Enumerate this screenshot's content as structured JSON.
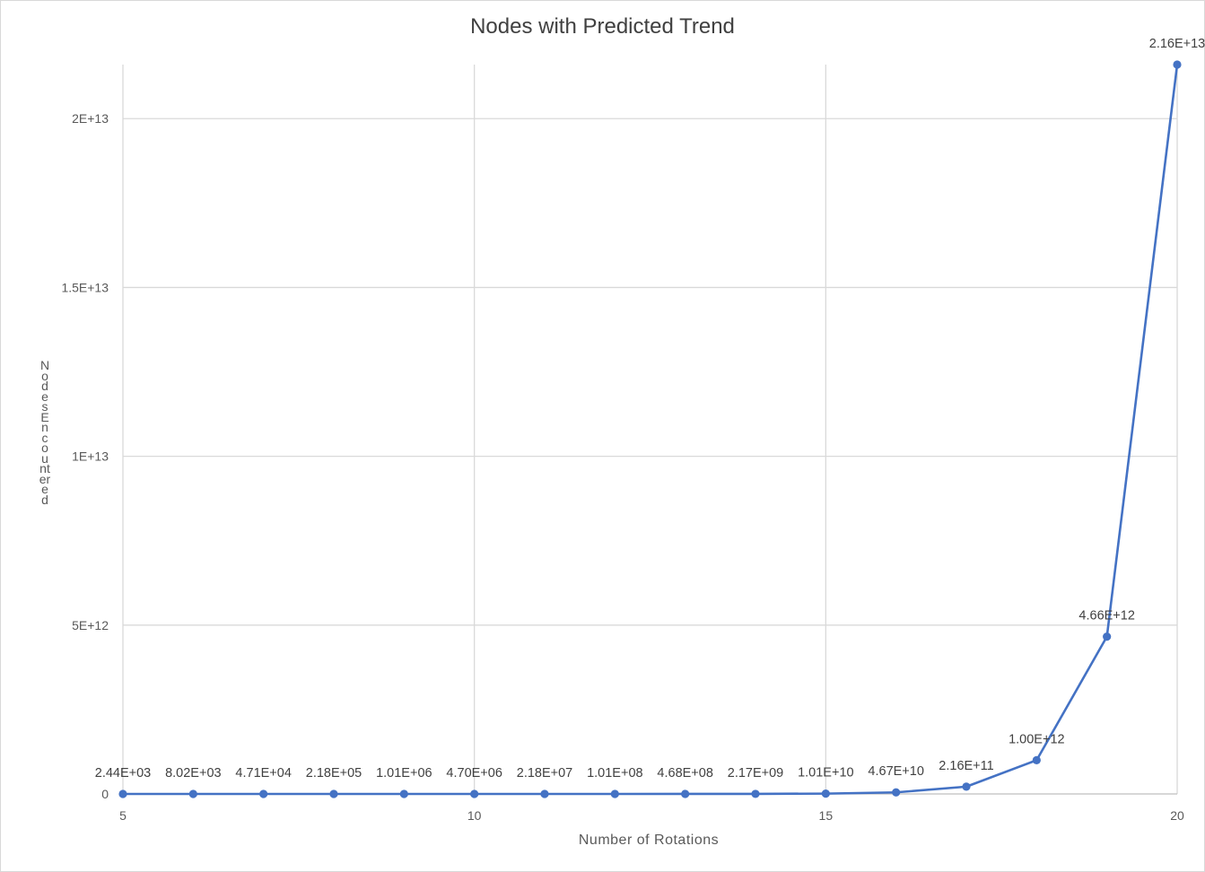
{
  "chart_data": {
    "type": "line",
    "title": "Nodes with Predicted Trend",
    "xlabel": "Number  of Rotations",
    "ylabel": "Nodes Encountered",
    "xlim": [
      5,
      20
    ],
    "ylim": [
      0,
      21600000000000
    ],
    "x_ticks": [
      5,
      10,
      15,
      20
    ],
    "x_tick_labels": [
      "5",
      "10",
      "15",
      "20"
    ],
    "y_ticks": [
      0,
      5000000000000,
      10000000000000,
      15000000000000,
      20000000000000
    ],
    "y_tick_labels": [
      "0",
      "5E+12",
      "1E+13",
      "1.5E+13",
      "2E+13"
    ],
    "grid": true,
    "legend": "none",
    "colors": {
      "series": "#4472c4",
      "grid": "#d9d9d9"
    },
    "series": [
      {
        "x": [
          5,
          6,
          7,
          8,
          9,
          10,
          11,
          12,
          13,
          14,
          15,
          16,
          17,
          18,
          19,
          20
        ],
        "values": [
          2440,
          8020,
          47100,
          218000,
          1010000,
          4700000,
          21800000,
          101000000,
          468000000,
          2170000000,
          10100000000,
          46700000000,
          216000000000,
          1000000000000,
          4660000000000,
          21600000000000
        ],
        "labels": [
          "2.44E+03",
          "8.02E+03",
          "4.71E+04",
          "2.18E+05",
          "1.01E+06",
          "4.70E+06",
          "2.18E+07",
          "1.01E+08",
          "4.68E+08",
          "2.17E+09",
          "1.01E+10",
          "4.67E+10",
          "2.16E+11",
          "1.00E+12",
          "4.66E+12",
          "2.16E+13"
        ]
      }
    ]
  }
}
